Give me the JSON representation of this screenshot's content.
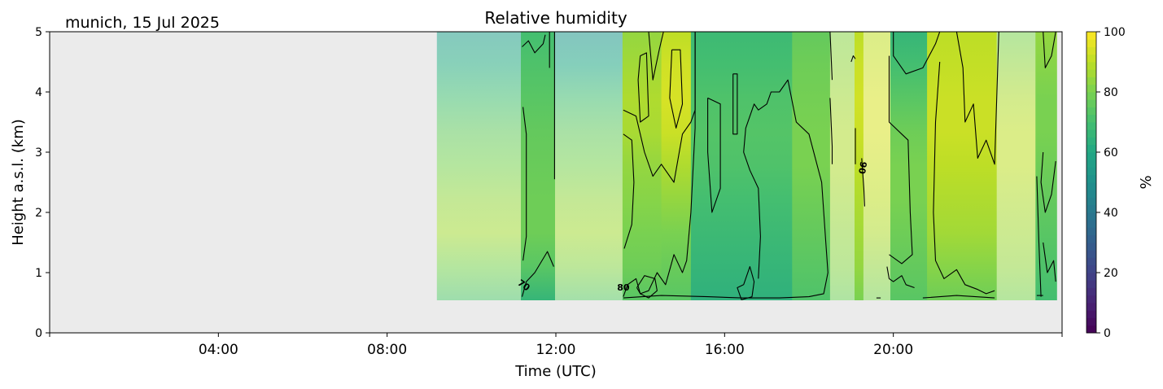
{
  "chart_data": {
    "type": "heatmap",
    "title": "Relative humidity",
    "subtitle": "munich, 15 Jul 2025",
    "xlabel": "Time (UTC)",
    "ylabel": "Height a.s.l. (km)",
    "xlim_hours": [
      0,
      24
    ],
    "ylim": [
      0,
      5
    ],
    "xticks": [
      {
        "hour": 0,
        "label": ""
      },
      {
        "hour": 4,
        "label": "04:00"
      },
      {
        "hour": 8,
        "label": "08:00"
      },
      {
        "hour": 12,
        "label": "12:00"
      },
      {
        "hour": 16,
        "label": "16:00"
      },
      {
        "hour": 20,
        "label": "20:00"
      },
      {
        "hour": 24,
        "label": ""
      }
    ],
    "yticks": [
      0,
      1,
      2,
      3,
      4,
      5
    ],
    "background_no_data": "#ebebeb",
    "data_extent": {
      "start_hour": 9.18,
      "end_hour": 23.87,
      "min_height_km": 0.54,
      "max_height_km": 5
    },
    "colorbar": {
      "label": "%",
      "range": [
        0,
        100
      ],
      "ticks": [
        0,
        20,
        40,
        60,
        80,
        100
      ],
      "colormap": "viridis"
    },
    "contour_levels": [
      70,
      80,
      90
    ],
    "contour_labels": [
      {
        "text": "70",
        "hour": 11.2,
        "height_km": 0.75
      },
      {
        "text": "80",
        "hour": 13.6,
        "height_km": 0.7
      },
      {
        "text": "90",
        "hour": 19.2,
        "height_km": 2.75
      }
    ],
    "segments": [
      {
        "start_hour": 9.18,
        "end_hour": 11.17,
        "faded": true,
        "profile": [
          72,
          80,
          86,
          84,
          80,
          76,
          70,
          62,
          55
        ]
      },
      {
        "start_hour": 11.17,
        "end_hour": 11.98,
        "faded": false,
        "profile": [
          66,
          74,
          78,
          78,
          77,
          76,
          74,
          72,
          70
        ]
      },
      {
        "start_hour": 11.98,
        "end_hour": 13.58,
        "faded": true,
        "profile": [
          74,
          82,
          86,
          84,
          80,
          76,
          70,
          60,
          52
        ]
      },
      {
        "start_hour": 13.58,
        "end_hour": 14.5,
        "faded": false,
        "profile": [
          74,
          78,
          80,
          82,
          84,
          87,
          88,
          86,
          84
        ]
      },
      {
        "start_hour": 14.5,
        "end_hour": 15.2,
        "faded": false,
        "profile": [
          74,
          77,
          80,
          84,
          88,
          92,
          94,
          93,
          90
        ]
      },
      {
        "start_hour": 15.2,
        "end_hour": 17.6,
        "faded": false,
        "profile": [
          64,
          66,
          68,
          70,
          72,
          73,
          72,
          70,
          68
        ]
      },
      {
        "start_hour": 17.6,
        "end_hour": 18.5,
        "faded": false,
        "profile": [
          72,
          74,
          76,
          78,
          80,
          80,
          79,
          78,
          76
        ]
      },
      {
        "start_hour": 18.5,
        "end_hour": 19.08,
        "faded": true,
        "profile": [
          78,
          82,
          84,
          86,
          88,
          88,
          86,
          84,
          82
        ]
      },
      {
        "start_hour": 19.08,
        "end_hour": 19.29,
        "faded": false,
        "profile": [
          80,
          84,
          86,
          88,
          90,
          92,
          93,
          92,
          90
        ]
      },
      {
        "start_hour": 19.29,
        "end_hour": 19.93,
        "faded": true,
        "profile": [
          80,
          84,
          88,
          90,
          92,
          94,
          94,
          92,
          90
        ]
      },
      {
        "start_hour": 19.93,
        "end_hour": 20.8,
        "faded": false,
        "profile": [
          74,
          76,
          78,
          80,
          80,
          78,
          74,
          70,
          66
        ]
      },
      {
        "start_hour": 20.8,
        "end_hour": 22.45,
        "faded": false,
        "profile": [
          78,
          82,
          86,
          88,
          90,
          92,
          92,
          91,
          90
        ]
      },
      {
        "start_hour": 22.45,
        "end_hour": 23.37,
        "faded": true,
        "profile": [
          80,
          84,
          86,
          88,
          90,
          90,
          88,
          84,
          80
        ]
      },
      {
        "start_hour": 23.37,
        "end_hour": 23.87,
        "faded": false,
        "profile": [
          70,
          72,
          74,
          76,
          78,
          80,
          80,
          82,
          84
        ]
      }
    ]
  }
}
